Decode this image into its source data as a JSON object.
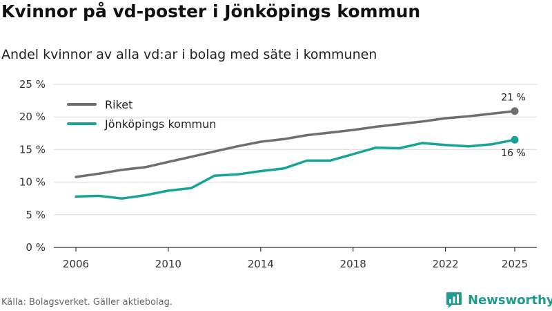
{
  "header": {
    "title": "Kvinnor på vd-poster i Jönköpings kommun",
    "subtitle": "Andel kvinnor av alla vd:ar i bolag med säte i kommunen"
  },
  "footer": {
    "source": "Källa: Bolagsverket. Gäller aktiebolag.",
    "brand": "Newsworthy",
    "brand_icon": "bar-chart-speech-icon"
  },
  "colors": {
    "riket": "#6e6e72",
    "kommun": "#17a498",
    "grid": "#d9d9d9",
    "axis": "#333333",
    "brand": "#1e9b8f"
  },
  "chart_data": {
    "type": "line",
    "title": "Kvinnor på vd-poster i Jönköpings kommun",
    "subtitle": "Andel kvinnor av alla vd:ar i bolag med säte i kommunen",
    "xlabel": "",
    "ylabel": "",
    "x": [
      2006,
      2007,
      2008,
      2009,
      2010,
      2011,
      2012,
      2013,
      2014,
      2015,
      2016,
      2017,
      2018,
      2019,
      2020,
      2021,
      2022,
      2023,
      2024,
      2025
    ],
    "xticks": [
      "2006",
      "2010",
      "2014",
      "2018",
      "2022",
      "2025"
    ],
    "ylim": [
      0,
      25
    ],
    "yticks": [
      "0 %",
      "5 %",
      "10 %",
      "15 %",
      "20 %",
      "25 %"
    ],
    "grid": true,
    "legend_position": "top-left",
    "series": [
      {
        "name": "Riket",
        "color_key": "riket",
        "values": [
          10.8,
          11.3,
          11.9,
          12.3,
          13.1,
          13.9,
          14.7,
          15.5,
          16.2,
          16.6,
          17.2,
          17.6,
          18.0,
          18.5,
          18.9,
          19.3,
          19.8,
          20.1,
          20.5,
          20.9
        ],
        "end_label": "21 %",
        "end_label_position": "above"
      },
      {
        "name": "Jönköpings kommun",
        "color_key": "kommun",
        "values": [
          7.8,
          7.9,
          7.5,
          8.0,
          8.7,
          9.1,
          11.0,
          11.2,
          11.7,
          12.1,
          13.3,
          13.3,
          14.3,
          15.3,
          15.2,
          16.0,
          15.7,
          15.5,
          15.8,
          16.5
        ],
        "end_label": "16 %",
        "end_label_position": "below"
      }
    ]
  }
}
